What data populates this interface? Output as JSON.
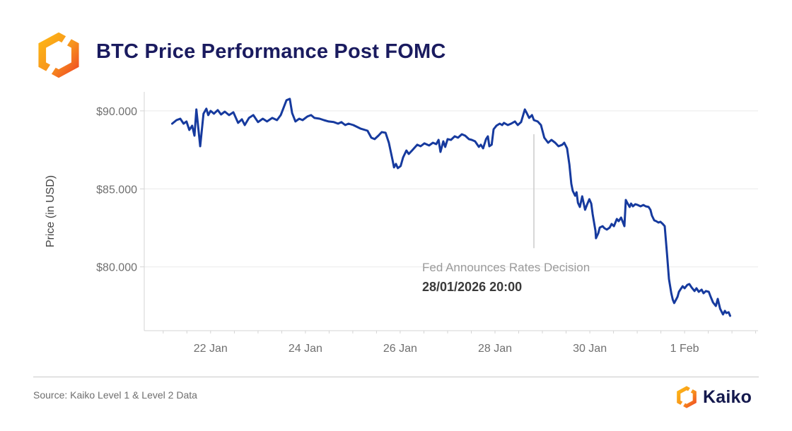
{
  "header": {
    "title": "BTC Price Performance Post FOMC"
  },
  "colors": {
    "line": "#163A9E",
    "title": "#1A1B5F",
    "grid": "#EAEAEA",
    "axis": "#D4D4D4",
    "tick_text": "#707070",
    "y_axis_title_text": "#454545",
    "event_line": "#CBCBCB",
    "annotation_label": "#9B9B9B",
    "annotation_date": "#3A3A3A",
    "divider": "#C9C9C9",
    "source_text": "#6E6E6E",
    "brand_navy": "#14194D",
    "logo_orange_light": "#FDB515",
    "logo_orange_dark": "#F04E23"
  },
  "footer": {
    "source": "Source: Kaiko Level 1 & Level 2 Data",
    "brand": "Kaiko",
    "brand_icon": "kaiko-hexagon-icon"
  },
  "chart_data": {
    "type": "line",
    "title": "BTC Price Performance Post FOMC",
    "xlabel": "",
    "ylabel": "Price (in USD)",
    "x_unit": "days relative to 28 Jan 2026 00:00",
    "y_unit": "USD thousands",
    "xlim": [
      -7.4,
      5.55
    ],
    "ylim": [
      75.91,
      91.22
    ],
    "grid": "horizontal",
    "legend": "none",
    "y_ticks": [
      {
        "value": 90,
        "label": "$90.000"
      },
      {
        "value": 85,
        "label": "$85.000"
      },
      {
        "value": 80,
        "label": "$80.000"
      }
    ],
    "x_ticks": [
      {
        "day": -6,
        "label": "22 Jan"
      },
      {
        "day": -4,
        "label": "24 Jan"
      },
      {
        "day": -2,
        "label": "26 Jan"
      },
      {
        "day": 0,
        "label": "28 Jan"
      },
      {
        "day": 2,
        "label": "30 Jan"
      },
      {
        "day": 4,
        "label": "1 Feb"
      }
    ],
    "x_minor_tick_interval": 0.5,
    "annotation": {
      "line1": "Fed Announces Rates Decision",
      "line2": "28/01/2026 20:00"
    },
    "event_line": {
      "day": 0.82,
      "price_top": 88.5,
      "price_bottom": 81.2
    },
    "series": [
      {
        "name": "BTC price (USD thousands)",
        "color": "#163A9E",
        "points": [
          [
            -6.81,
            89.18
          ],
          [
            -6.72,
            89.41
          ],
          [
            -6.64,
            89.5
          ],
          [
            -6.57,
            89.18
          ],
          [
            -6.51,
            89.32
          ],
          [
            -6.45,
            88.78
          ],
          [
            -6.39,
            89.05
          ],
          [
            -6.34,
            88.41
          ],
          [
            -6.3,
            90.09
          ],
          [
            -6.22,
            87.73
          ],
          [
            -6.15,
            89.82
          ],
          [
            -6.09,
            90.14
          ],
          [
            -6.05,
            89.73
          ],
          [
            -6.0,
            90.0
          ],
          [
            -5.93,
            89.82
          ],
          [
            -5.85,
            90.05
          ],
          [
            -5.78,
            89.77
          ],
          [
            -5.7,
            89.95
          ],
          [
            -5.61,
            89.73
          ],
          [
            -5.52,
            89.91
          ],
          [
            -5.42,
            89.23
          ],
          [
            -5.34,
            89.46
          ],
          [
            -5.28,
            89.09
          ],
          [
            -5.19,
            89.55
          ],
          [
            -5.1,
            89.73
          ],
          [
            -5.0,
            89.28
          ],
          [
            -4.9,
            89.5
          ],
          [
            -4.81,
            89.32
          ],
          [
            -4.7,
            89.55
          ],
          [
            -4.6,
            89.41
          ],
          [
            -4.52,
            89.73
          ],
          [
            -4.4,
            90.68
          ],
          [
            -4.33,
            90.77
          ],
          [
            -4.28,
            89.86
          ],
          [
            -4.21,
            89.32
          ],
          [
            -4.13,
            89.5
          ],
          [
            -4.06,
            89.41
          ],
          [
            -3.96,
            89.64
          ],
          [
            -3.88,
            89.73
          ],
          [
            -3.81,
            89.55
          ],
          [
            -3.7,
            89.5
          ],
          [
            -3.61,
            89.41
          ],
          [
            -3.51,
            89.32
          ],
          [
            -3.4,
            89.28
          ],
          [
            -3.31,
            89.18
          ],
          [
            -3.24,
            89.28
          ],
          [
            -3.16,
            89.09
          ],
          [
            -3.09,
            89.18
          ],
          [
            -2.99,
            89.09
          ],
          [
            -2.84,
            88.87
          ],
          [
            -2.69,
            88.73
          ],
          [
            -2.61,
            88.28
          ],
          [
            -2.54,
            88.19
          ],
          [
            -2.46,
            88.41
          ],
          [
            -2.39,
            88.64
          ],
          [
            -2.31,
            88.6
          ],
          [
            -2.24,
            87.96
          ],
          [
            -2.16,
            86.83
          ],
          [
            -2.13,
            86.38
          ],
          [
            -2.09,
            86.6
          ],
          [
            -2.05,
            86.33
          ],
          [
            -1.99,
            86.47
          ],
          [
            -1.94,
            87.01
          ],
          [
            -1.87,
            87.46
          ],
          [
            -1.82,
            87.24
          ],
          [
            -1.75,
            87.46
          ],
          [
            -1.64,
            87.83
          ],
          [
            -1.57,
            87.73
          ],
          [
            -1.49,
            87.92
          ],
          [
            -1.39,
            87.78
          ],
          [
            -1.31,
            87.96
          ],
          [
            -1.24,
            87.87
          ],
          [
            -1.19,
            88.14
          ],
          [
            -1.15,
            87.37
          ],
          [
            -1.09,
            88.05
          ],
          [
            -1.05,
            87.69
          ],
          [
            -1.0,
            88.19
          ],
          [
            -0.93,
            88.14
          ],
          [
            -0.85,
            88.37
          ],
          [
            -0.78,
            88.28
          ],
          [
            -0.7,
            88.5
          ],
          [
            -0.63,
            88.41
          ],
          [
            -0.55,
            88.19
          ],
          [
            -0.49,
            88.14
          ],
          [
            -0.42,
            88.05
          ],
          [
            -0.34,
            87.69
          ],
          [
            -0.3,
            87.83
          ],
          [
            -0.25,
            87.6
          ],
          [
            -0.19,
            88.19
          ],
          [
            -0.15,
            88.37
          ],
          [
            -0.12,
            87.73
          ],
          [
            -0.07,
            87.83
          ],
          [
            -0.03,
            88.82
          ],
          [
            0.03,
            89.05
          ],
          [
            0.1,
            89.18
          ],
          [
            0.15,
            89.09
          ],
          [
            0.19,
            89.23
          ],
          [
            0.27,
            89.09
          ],
          [
            0.34,
            89.18
          ],
          [
            0.42,
            89.32
          ],
          [
            0.48,
            89.09
          ],
          [
            0.55,
            89.28
          ],
          [
            0.63,
            90.09
          ],
          [
            0.67,
            89.86
          ],
          [
            0.72,
            89.55
          ],
          [
            0.78,
            89.73
          ],
          [
            0.82,
            89.41
          ],
          [
            0.9,
            89.32
          ],
          [
            0.97,
            89.09
          ],
          [
            1.04,
            88.28
          ],
          [
            1.12,
            87.96
          ],
          [
            1.19,
            88.14
          ],
          [
            1.27,
            87.96
          ],
          [
            1.34,
            87.73
          ],
          [
            1.42,
            87.83
          ],
          [
            1.46,
            87.96
          ],
          [
            1.52,
            87.6
          ],
          [
            1.57,
            86.56
          ],
          [
            1.61,
            85.33
          ],
          [
            1.64,
            84.88
          ],
          [
            1.69,
            84.56
          ],
          [
            1.72,
            84.79
          ],
          [
            1.75,
            84.11
          ],
          [
            1.79,
            83.84
          ],
          [
            1.84,
            84.52
          ],
          [
            1.9,
            83.66
          ],
          [
            1.94,
            83.97
          ],
          [
            1.99,
            84.34
          ],
          [
            2.03,
            84.06
          ],
          [
            2.06,
            83.38
          ],
          [
            2.12,
            82.3
          ],
          [
            2.13,
            81.84
          ],
          [
            2.18,
            82.16
          ],
          [
            2.21,
            82.52
          ],
          [
            2.27,
            82.61
          ],
          [
            2.31,
            82.48
          ],
          [
            2.36,
            82.39
          ],
          [
            2.42,
            82.52
          ],
          [
            2.46,
            82.75
          ],
          [
            2.51,
            82.61
          ],
          [
            2.57,
            83.07
          ],
          [
            2.61,
            82.93
          ],
          [
            2.66,
            83.16
          ],
          [
            2.73,
            82.61
          ],
          [
            2.76,
            84.29
          ],
          [
            2.79,
            84.11
          ],
          [
            2.84,
            83.84
          ],
          [
            2.87,
            84.06
          ],
          [
            2.91,
            83.88
          ],
          [
            2.96,
            84.02
          ],
          [
            3.01,
            83.97
          ],
          [
            3.07,
            83.88
          ],
          [
            3.13,
            83.97
          ],
          [
            3.18,
            83.88
          ],
          [
            3.24,
            83.84
          ],
          [
            3.28,
            83.66
          ],
          [
            3.31,
            83.29
          ],
          [
            3.36,
            82.98
          ],
          [
            3.4,
            82.93
          ],
          [
            3.45,
            82.84
          ],
          [
            3.49,
            82.89
          ],
          [
            3.54,
            82.75
          ],
          [
            3.58,
            82.61
          ],
          [
            3.63,
            80.8
          ],
          [
            3.67,
            79.22
          ],
          [
            3.72,
            78.31
          ],
          [
            3.75,
            77.9
          ],
          [
            3.78,
            77.68
          ],
          [
            3.82,
            77.9
          ],
          [
            3.85,
            78.08
          ],
          [
            3.88,
            78.4
          ],
          [
            3.91,
            78.54
          ],
          [
            3.96,
            78.76
          ],
          [
            4.0,
            78.63
          ],
          [
            4.06,
            78.85
          ],
          [
            4.1,
            78.9
          ],
          [
            4.15,
            78.67
          ],
          [
            4.21,
            78.45
          ],
          [
            4.25,
            78.63
          ],
          [
            4.3,
            78.4
          ],
          [
            4.36,
            78.54
          ],
          [
            4.4,
            78.31
          ],
          [
            4.45,
            78.45
          ],
          [
            4.51,
            78.4
          ],
          [
            4.55,
            78.08
          ],
          [
            4.6,
            77.72
          ],
          [
            4.66,
            77.49
          ],
          [
            4.7,
            77.95
          ],
          [
            4.75,
            77.31
          ],
          [
            4.81,
            76.95
          ],
          [
            4.85,
            77.18
          ],
          [
            4.88,
            77.04
          ],
          [
            4.93,
            77.09
          ],
          [
            4.96,
            76.86
          ]
        ]
      }
    ]
  }
}
